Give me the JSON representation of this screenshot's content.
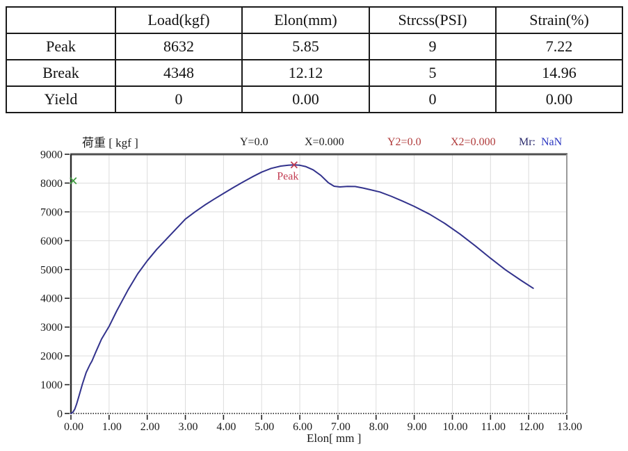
{
  "results_table": {
    "columns": [
      "",
      "Load(kgf)",
      "Elon(mm)",
      "Strcss(PSI)",
      "Strain(%)"
    ],
    "rows": [
      {
        "label": "Peak",
        "values": [
          "8632",
          "5.85",
          "9",
          "7.22"
        ]
      },
      {
        "label": "Break",
        "values": [
          "4348",
          "12.12",
          "5",
          "14.96"
        ]
      },
      {
        "label": "Yield",
        "values": [
          "0",
          "0.00",
          "0",
          "0.00"
        ]
      }
    ]
  },
  "chart_header": {
    "y_axis_title": "荷重 [ kgf ]",
    "y_readout": "Y=0.0",
    "x_readout": "X=0.000",
    "y2_readout": "Y2=0.0",
    "x2_readout": "X2=0.000",
    "mr_label": "Mr:",
    "mr_value": "NaN"
  },
  "chart_data": {
    "type": "line",
    "title": "",
    "xlabel": "Elon[ mm ]",
    "ylabel": "荷重 [ kgf ]",
    "xlim": [
      0,
      13
    ],
    "ylim": [
      0,
      9000
    ],
    "grid": true,
    "x_tick_labels": [
      "0.00",
      "1.00",
      "2.00",
      "3.00",
      "4.00",
      "5.00",
      "6.00",
      "7.00",
      "8.00",
      "9.00",
      "10.00",
      "11.00",
      "12.00",
      "13.00"
    ],
    "y_tick_labels": [
      "0",
      "1000",
      "2000",
      "3000",
      "4000",
      "5000",
      "6000",
      "7000",
      "8000",
      "9000"
    ],
    "series": [
      {
        "name": "load-elongation-curve",
        "color": "#32328c",
        "points": [
          [
            0.0,
            0
          ],
          [
            0.05,
            40
          ],
          [
            0.1,
            150
          ],
          [
            0.15,
            330
          ],
          [
            0.2,
            560
          ],
          [
            0.3,
            1020
          ],
          [
            0.4,
            1420
          ],
          [
            0.5,
            1700
          ],
          [
            0.55,
            1820
          ],
          [
            0.65,
            2130
          ],
          [
            0.8,
            2580
          ],
          [
            1.0,
            3020
          ],
          [
            1.2,
            3560
          ],
          [
            1.5,
            4300
          ],
          [
            1.75,
            4850
          ],
          [
            2.0,
            5300
          ],
          [
            2.25,
            5700
          ],
          [
            2.5,
            6050
          ],
          [
            2.75,
            6400
          ],
          [
            3.0,
            6750
          ],
          [
            3.25,
            7000
          ],
          [
            3.5,
            7230
          ],
          [
            3.75,
            7440
          ],
          [
            4.0,
            7640
          ],
          [
            4.25,
            7840
          ],
          [
            4.5,
            8030
          ],
          [
            4.75,
            8210
          ],
          [
            5.0,
            8380
          ],
          [
            5.25,
            8510
          ],
          [
            5.5,
            8590
          ],
          [
            5.7,
            8622
          ],
          [
            5.85,
            8632
          ],
          [
            6.0,
            8618
          ],
          [
            6.15,
            8575
          ],
          [
            6.35,
            8460
          ],
          [
            6.55,
            8270
          ],
          [
            6.75,
            8010
          ],
          [
            6.9,
            7890
          ],
          [
            7.05,
            7865
          ],
          [
            7.25,
            7885
          ],
          [
            7.45,
            7880
          ],
          [
            7.65,
            7830
          ],
          [
            7.85,
            7770
          ],
          [
            8.1,
            7690
          ],
          [
            8.4,
            7540
          ],
          [
            8.7,
            7370
          ],
          [
            9.0,
            7190
          ],
          [
            9.4,
            6920
          ],
          [
            9.8,
            6600
          ],
          [
            10.2,
            6230
          ],
          [
            10.6,
            5820
          ],
          [
            11.0,
            5390
          ],
          [
            11.4,
            4980
          ],
          [
            11.8,
            4620
          ],
          [
            12.12,
            4348
          ]
        ]
      }
    ],
    "markers": [
      {
        "name": "start-marker",
        "symbol": "x",
        "color": "#3f9b3f",
        "x": 0.06,
        "y": 8080,
        "label": ""
      },
      {
        "name": "peak-marker",
        "symbol": "x",
        "color": "#c13a50",
        "x": 5.85,
        "y": 8632,
        "label": "Peak"
      }
    ],
    "peak_annotation": "Peak"
  },
  "colors": {
    "curve": "#32328c",
    "peak": "#c13a50",
    "start_marker": "#3f9b3f",
    "readout_secondary": "#b03a3a",
    "mr_label": "#2d2d6e",
    "mr_value": "#2a35c0",
    "grid": "#dcdcdc",
    "table_border": "#1a1a1a"
  }
}
